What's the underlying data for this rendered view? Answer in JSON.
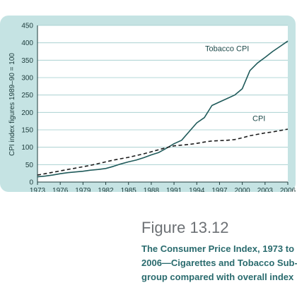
{
  "chart_data": {
    "type": "line",
    "ylabel": "CPI index figures 1989–90 = 100",
    "xlabel": "",
    "ylim": [
      0,
      450
    ],
    "yticks": [
      0,
      50,
      100,
      150,
      200,
      250,
      300,
      350,
      400,
      450
    ],
    "xlim": [
      1973,
      2006
    ],
    "xticks": [
      "1973",
      "1976",
      "1979",
      "1982",
      "1985",
      "1988",
      "1991",
      "1994",
      "1997",
      "2000",
      "2003",
      "2006"
    ],
    "grid": "horizontal",
    "series": [
      {
        "name": "Tobacco CPI",
        "style": "solid",
        "color": "#1f5a5a",
        "x": [
          1973,
          1974,
          1975,
          1976,
          1977,
          1978,
          1979,
          1980,
          1981,
          1982,
          1983,
          1984,
          1985,
          1986,
          1987,
          1988,
          1989,
          1990,
          1991,
          1992,
          1993,
          1994,
          1995,
          1996,
          1997,
          1998,
          1999,
          2000,
          2001,
          2002,
          2003,
          2004,
          2005,
          2006
        ],
        "y": [
          15,
          17,
          20,
          24,
          27,
          29,
          31,
          34,
          36,
          39,
          45,
          52,
          58,
          63,
          70,
          78,
          85,
          97,
          110,
          120,
          145,
          170,
          185,
          220,
          230,
          240,
          250,
          268,
          320,
          342,
          358,
          375,
          390,
          405
        ]
      },
      {
        "name": "CPI",
        "style": "dashed",
        "color": "#1b1b1b",
        "x": [
          1973,
          1974,
          1975,
          1976,
          1977,
          1978,
          1979,
          1980,
          1981,
          1982,
          1983,
          1984,
          1985,
          1986,
          1987,
          1988,
          1989,
          1990,
          1991,
          1992,
          1993,
          1994,
          1995,
          1996,
          1997,
          1998,
          1999,
          2000,
          2001,
          2002,
          2003,
          2004,
          2005,
          2006
        ],
        "y": [
          20,
          24,
          28,
          32,
          36,
          40,
          44,
          48,
          53,
          58,
          63,
          67,
          71,
          76,
          81,
          87,
          93,
          99,
          104,
          106,
          108,
          111,
          115,
          118,
          119,
          120,
          122,
          127,
          133,
          137,
          141,
          144,
          148,
          152
        ]
      }
    ],
    "annotations": [
      {
        "text": "Tobacco CPI",
        "series": "Tobacco CPI"
      },
      {
        "text": "CPI",
        "series": "CPI"
      }
    ],
    "colors": {
      "panel": "#c5e3e3",
      "plot": "#ffffff",
      "grid": "#9dcbcb",
      "axis": "#1d3b3b"
    }
  },
  "caption": {
    "figure": "Figure 13.12",
    "lines": [
      "The Consumer Price Index, 1973 to",
      "2006—Cigarettes and Tobacco Sub-",
      "group compared with overall index"
    ]
  }
}
